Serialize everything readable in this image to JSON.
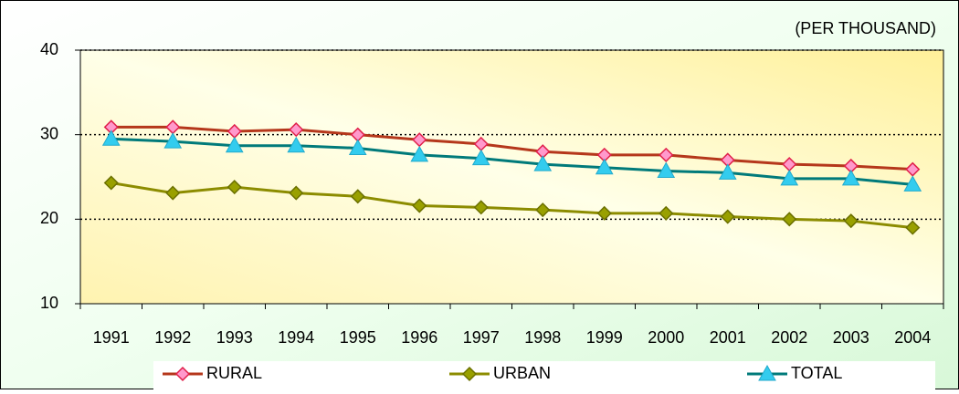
{
  "chart_data": {
    "type": "line",
    "annotation": "(PER  THOUSAND)",
    "categories": [
      "1991",
      "1992",
      "1993",
      "1994",
      "1995",
      "1996",
      "1997",
      "1998",
      "1999",
      "2000",
      "2001",
      "2002",
      "2003",
      "2004"
    ],
    "series": [
      {
        "name": "RURAL",
        "color": "#b5371b",
        "marker_color": "#ff99cc",
        "marker_edge": "#e0204a",
        "marker": "diamond",
        "values": [
          30.9,
          30.9,
          30.4,
          30.6,
          30.0,
          29.4,
          28.9,
          28.0,
          27.6,
          27.6,
          27.0,
          26.5,
          26.3,
          25.9
        ]
      },
      {
        "name": "URBAN",
        "color": "#8c8c00",
        "marker_color": "#99a000",
        "marker_edge": "#6b7000",
        "marker": "diamond",
        "values": [
          24.3,
          23.1,
          23.8,
          23.1,
          22.7,
          21.6,
          21.4,
          21.1,
          20.7,
          20.7,
          20.3,
          20.0,
          19.8,
          19.0
        ]
      },
      {
        "name": "TOTAL",
        "color": "#007a7a",
        "marker_color": "#33ccee",
        "marker_edge": "#22aacc",
        "marker": "triangle",
        "values": [
          29.5,
          29.2,
          28.7,
          28.7,
          28.4,
          27.6,
          27.2,
          26.5,
          26.1,
          25.7,
          25.5,
          24.8,
          24.8,
          24.1
        ]
      }
    ],
    "ylim": [
      10,
      40
    ],
    "yticks": [
      10,
      20,
      30,
      40
    ],
    "grid": true
  }
}
